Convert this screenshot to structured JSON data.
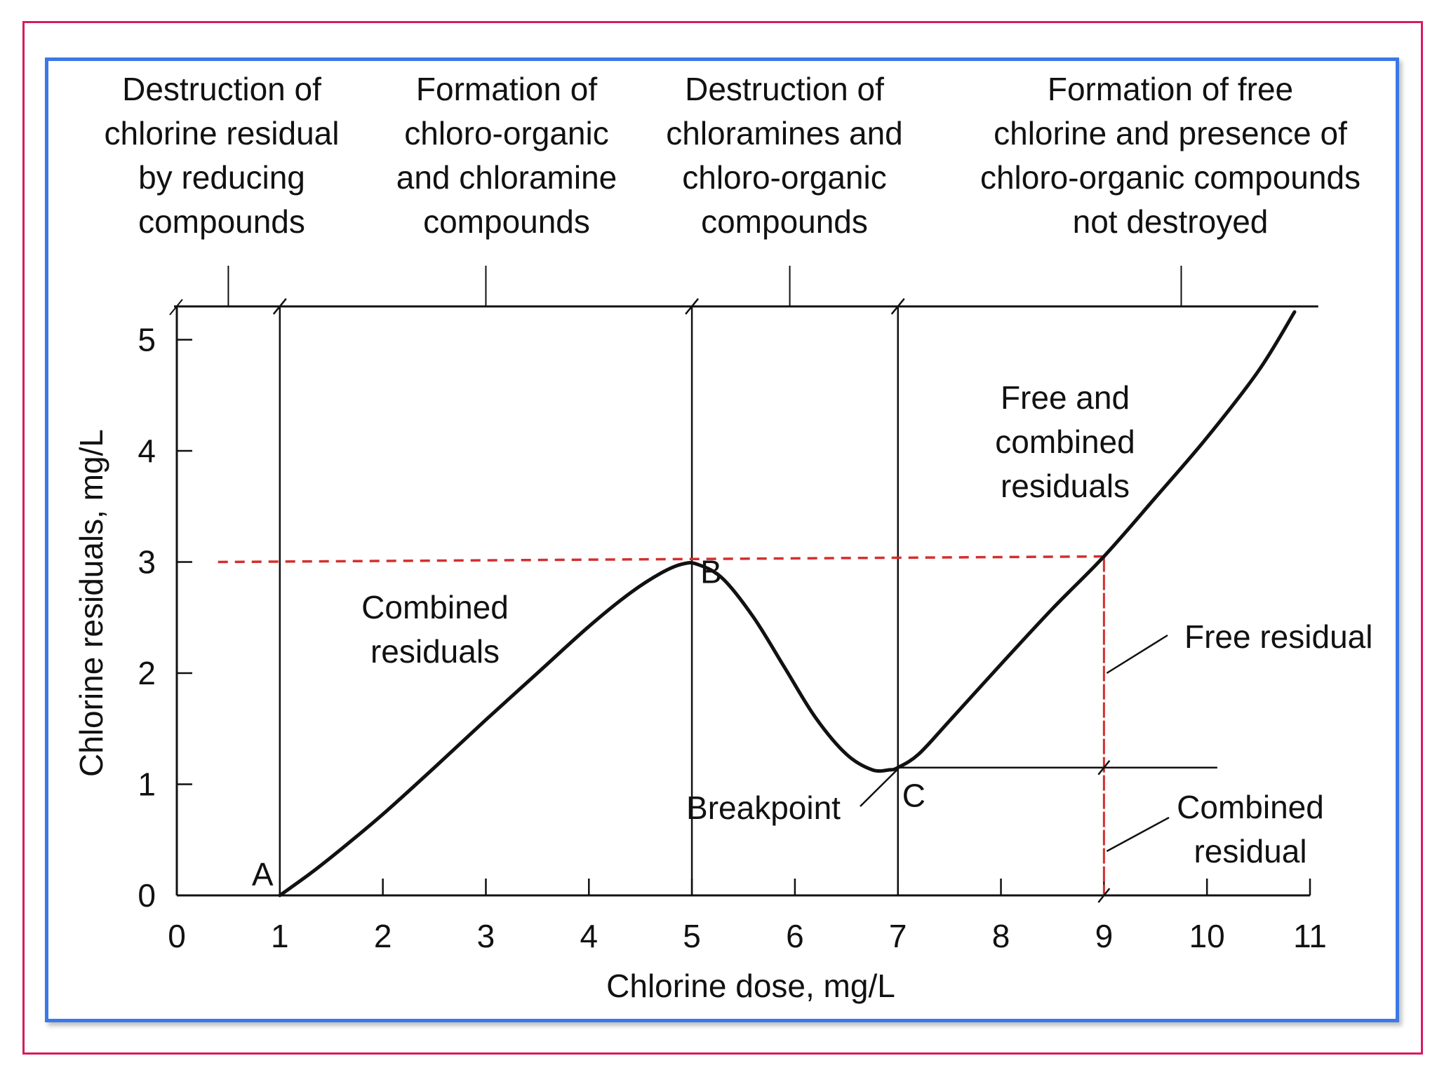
{
  "chart_data": {
    "type": "line",
    "title": "",
    "xlabel": "Chlorine dose, mg/L",
    "ylabel": "Chlorine residuals, mg/L",
    "xlim": [
      0,
      11
    ],
    "ylim": [
      0,
      5.3
    ],
    "x_ticks": [
      0,
      1,
      2,
      3,
      4,
      5,
      6,
      7,
      8,
      9,
      10,
      11
    ],
    "y_ticks": [
      0,
      1,
      2,
      3,
      4,
      5
    ],
    "grid": false,
    "series": [
      {
        "x": [
          1.0,
          1.3,
          1.6,
          2.0,
          2.5,
          3.0,
          3.5,
          4.0,
          4.4,
          4.7,
          4.9,
          5.05,
          5.3,
          5.6,
          5.9,
          6.2,
          6.5,
          6.75,
          6.92,
          7.0,
          7.2,
          7.5,
          8.0,
          8.5,
          9.0,
          9.5,
          10.0,
          10.5,
          10.85
        ],
        "y": [
          0.0,
          0.2,
          0.42,
          0.73,
          1.15,
          1.58,
          2.0,
          2.42,
          2.72,
          2.9,
          2.98,
          2.98,
          2.85,
          2.5,
          2.05,
          1.6,
          1.27,
          1.13,
          1.13,
          1.15,
          1.27,
          1.57,
          2.08,
          2.58,
          3.05,
          3.58,
          4.12,
          4.72,
          5.25
        ]
      }
    ],
    "region_boundaries_x": [
      1,
      5,
      7
    ],
    "region_labels": [
      [
        "Destruction of",
        "chlorine residual",
        "by reducing",
        "compounds"
      ],
      [
        "Formation of",
        "chloro-organic",
        "and chloramine",
        "compounds"
      ],
      [
        "Destruction of",
        "chloramines and",
        "chloro-organic",
        "compounds"
      ],
      [
        "Formation of free",
        "chlorine and presence of",
        "chloro-organic compounds",
        "not destroyed"
      ]
    ],
    "points": [
      {
        "label": "A",
        "x": 1,
        "y": 0
      },
      {
        "label": "B",
        "x": 5,
        "y": 3
      },
      {
        "label": "C",
        "x": 7,
        "y": 1.15
      }
    ],
    "reference_lines": {
      "dashed_y": 3,
      "dashed_x": 9,
      "combined_level_y": 1.15,
      "color": "#d32f2f"
    },
    "annotations": {
      "combined_residuals": [
        "Combined",
        "residuals"
      ],
      "free_and_combined": [
        "Free and",
        "combined",
        "residuals"
      ],
      "breakpoint": "Breakpoint",
      "free_residual": "Free residual",
      "combined_residual": [
        "Combined",
        "residual"
      ]
    }
  },
  "colors": {
    "curve": "#111111",
    "outer_frame": "#d81b60",
    "inner_frame": "#3b78e7",
    "dashed": "#d32f2f"
  }
}
